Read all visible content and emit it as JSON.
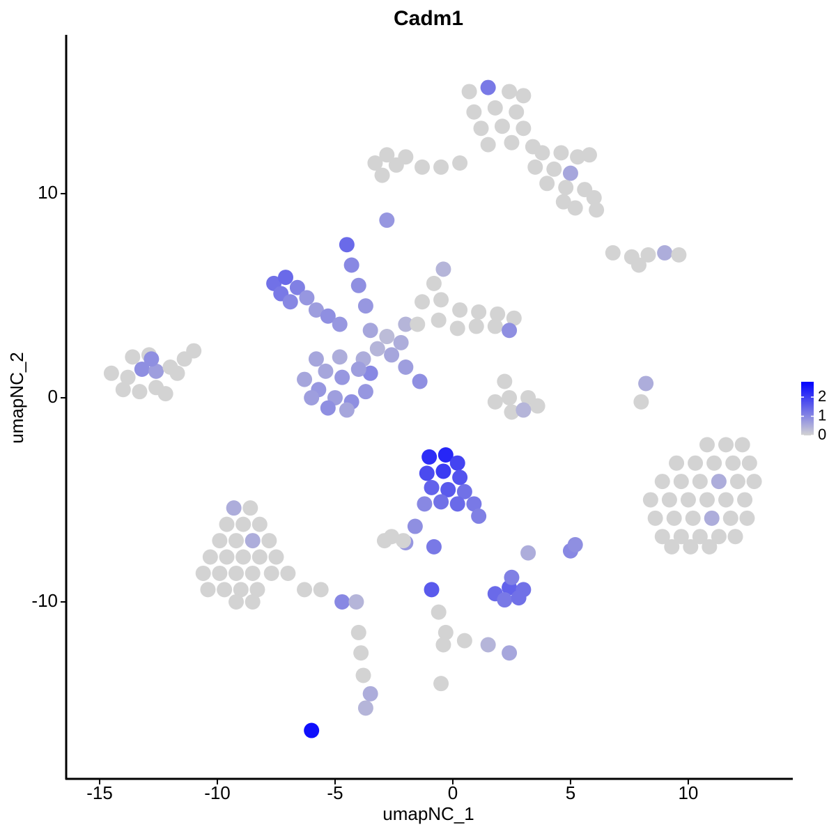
{
  "chart_data": {
    "type": "scatter",
    "title": "Cadm1",
    "xlabel": "umapNC_1",
    "ylabel": "umapNC_2",
    "xlim": [
      -16.42,
      14.44
    ],
    "ylim": [
      -18.67,
      17.78
    ],
    "xticks": [
      -15,
      -10,
      -5,
      0,
      5,
      10
    ],
    "yticks": [
      -10,
      0,
      10
    ],
    "colorbar": {
      "colors": [
        "#d3d3d3",
        "#0000ff"
      ],
      "lim": [
        0,
        2.8
      ],
      "ticks": [
        0,
        1,
        2
      ]
    },
    "x": [
      0.7,
      1.5,
      2.4,
      3.0,
      0.9,
      1.8,
      2.7,
      1.2,
      2.1,
      3.0,
      1.5,
      2.5,
      3.4,
      3.8,
      4.6,
      5.3,
      5.8,
      3.5,
      4.3,
      5.0,
      4.0,
      4.8,
      5.6,
      6.0,
      4.7,
      5.2,
      6.1,
      0.3,
      -0.5,
      -1.3,
      -2.0,
      -2.8,
      -3.3,
      -2.4,
      -3.0,
      -2.8,
      6.8,
      7.6,
      8.3,
      9.0,
      9.6,
      7.9,
      -14.5,
      -13.8,
      -13.2,
      -12.6,
      -12.0,
      -11.4,
      -11.0,
      -14.0,
      -13.3,
      -12.6,
      -12.2,
      -13.6,
      -12.9,
      -11.7,
      -12.8,
      -7.6,
      -7.1,
      -7.3,
      -6.6,
      -6.9,
      -6.2,
      -5.8,
      -5.3,
      -4.8,
      -4.5,
      -4.3,
      -4.0,
      -3.7,
      -3.5,
      -2.8,
      -2.2,
      -3.2,
      -2.0,
      -3.8,
      -6.3,
      -5.7,
      -5.0,
      -4.3,
      -3.7,
      -3.5,
      -5.4,
      -4.7,
      -4.0,
      -6.0,
      -5.3,
      -4.5,
      -4.8,
      -5.8,
      -2.6,
      -2.0,
      -1.4,
      -0.8,
      -1.3,
      -0.5,
      0.3,
      1.1,
      1.9,
      2.6,
      -0.6,
      0.2,
      -1.5,
      1.0,
      1.8,
      2.4,
      -0.4,
      1.8,
      2.4,
      3.2,
      3.6,
      2.5,
      2.2,
      3.0,
      8.0,
      8.2,
      10.8,
      11.6,
      12.3,
      9.5,
      10.3,
      11.1,
      11.9,
      12.6,
      8.9,
      9.7,
      10.5,
      11.3,
      12.1,
      12.8,
      8.4,
      9.2,
      10.0,
      10.8,
      11.6,
      12.4,
      8.6,
      9.4,
      10.2,
      11.0,
      11.8,
      12.5,
      8.9,
      9.7,
      10.5,
      11.3,
      12.0,
      9.3,
      10.1,
      10.9,
      -1.0,
      -0.3,
      0.2,
      -1.1,
      -0.4,
      0.3,
      -0.9,
      -0.2,
      0.5,
      0.9,
      0.2,
      -0.5,
      1.1,
      -1.2,
      -1.6,
      -2.0,
      -2.6,
      -2.1,
      -2.9,
      -0.8,
      -9.3,
      -8.6,
      -9.6,
      -8.9,
      -8.2,
      -9.9,
      -9.2,
      -8.5,
      -7.8,
      -10.3,
      -9.6,
      -8.9,
      -8.2,
      -7.5,
      -10.6,
      -9.9,
      -9.2,
      -8.5,
      -7.7,
      -7.0,
      -10.4,
      -9.7,
      -9.0,
      -8.3,
      -6.3,
      -5.6,
      -9.2,
      -8.5,
      -4.7,
      -4.1,
      -4.0,
      -3.9,
      -3.8,
      -3.5,
      -3.7,
      -6.0,
      1.8,
      2.4,
      3.0,
      2.2,
      2.8,
      2.5,
      3.2,
      -0.9,
      -0.6,
      -0.3,
      -0.4,
      0.5,
      1.5,
      2.4,
      5.0,
      5.2,
      -0.5
    ],
    "y": [
      15,
      15.2,
      15,
      14.8,
      14,
      14.2,
      14,
      13.2,
      13.3,
      13.2,
      12.4,
      12.5,
      12.3,
      12,
      12,
      11.8,
      11.9,
      11.3,
      11.2,
      11.0,
      10.5,
      10.3,
      10.2,
      9.8,
      9.6,
      9.3,
      9.2,
      11.5,
      11.3,
      11.3,
      11.8,
      11.9,
      11.5,
      11.4,
      10.9,
      8.7,
      7.1,
      6.9,
      7.0,
      7.1,
      7.0,
      6.5,
      1.2,
      1.0,
      1.4,
      1.3,
      1.5,
      1.9,
      2.3,
      0.4,
      0.3,
      0.5,
      0.2,
      2.0,
      2.1,
      1.2,
      1.9,
      5.6,
      5.9,
      5.1,
      5.4,
      4.7,
      4.9,
      4.3,
      4.0,
      3.6,
      7.5,
      6.5,
      5.5,
      4.5,
      3.3,
      3.0,
      2.7,
      2.4,
      3.6,
      1.9,
      0.9,
      0.4,
      0.0,
      -0.2,
      0.3,
      1.2,
      1.3,
      1.0,
      1.4,
      0.0,
      -0.5,
      -0.6,
      2.0,
      1.9,
      2.1,
      1.5,
      0.8,
      5.6,
      4.7,
      4.8,
      4.3,
      4.2,
      4.1,
      3.9,
      3.8,
      3.4,
      3.6,
      3.5,
      3.5,
      3.3,
      6.3,
      -0.2,
      0,
      0,
      -0.4,
      -0.7,
      0.8,
      -0.6,
      -0.2,
      0.7,
      -2.3,
      -2.3,
      -2.3,
      -3.2,
      -3.2,
      -3.2,
      -3.2,
      -3.2,
      -4.1,
      -4.1,
      -4.1,
      -4.1,
      -4.1,
      -4.1,
      -5.0,
      -5.0,
      -5.0,
      -5.0,
      -5.0,
      -5.0,
      -5.9,
      -5.9,
      -5.9,
      -5.9,
      -5.9,
      -5.9,
      -6.8,
      -6.8,
      -6.8,
      -6.8,
      -6.8,
      -7.3,
      -7.3,
      -7.3,
      -2.9,
      -2.8,
      -3.2,
      -3.7,
      -3.6,
      -3.9,
      -4.4,
      -4.5,
      -4.6,
      -5.2,
      -5.2,
      -5.1,
      -5.8,
      -5.2,
      -6.3,
      -7.1,
      -6.8,
      -7.0,
      -7.0,
      -7.3,
      -5.4,
      -5.4,
      -6.2,
      -6.2,
      -6.2,
      -7.0,
      -7.0,
      -7.0,
      -7.0,
      -7.8,
      -7.8,
      -7.8,
      -7.8,
      -7.8,
      -8.6,
      -8.6,
      -8.6,
      -8.6,
      -8.6,
      -8.6,
      -9.4,
      -9.4,
      -9.4,
      -9.4,
      -9.4,
      -9.4,
      -10.0,
      -10.0,
      -10.0,
      -10.0,
      -11.5,
      -12.5,
      -13.6,
      -14.5,
      -15.2,
      -16.3,
      -9.6,
      -9.3,
      -9.4,
      -9.9,
      -9.8,
      -8.8,
      -7.6,
      -9.4,
      -10.5,
      -11.5,
      -12.1,
      -11.9,
      -12.1,
      -12.5,
      -7.5,
      -7.2,
      -14.0
    ],
    "values": [
      0,
      1.2,
      0,
      0,
      0,
      0,
      0,
      0,
      0,
      0,
      0,
      0,
      0,
      0,
      0,
      0,
      0,
      0,
      0,
      0.6,
      0,
      0,
      0,
      0,
      0,
      0,
      0,
      0,
      0,
      0,
      0,
      0,
      0,
      0,
      0,
      0.8,
      0,
      0,
      0,
      0.5,
      0,
      0,
      0,
      0,
      0.9,
      0.7,
      0,
      0,
      0,
      0,
      0,
      0,
      0,
      0,
      0,
      0,
      0.9,
      1.3,
      1.4,
      1.2,
      1.1,
      1.0,
      0.8,
      0.7,
      0.9,
      0.8,
      1.4,
      1.0,
      0.9,
      0.8,
      0.6,
      0.3,
      0.5,
      0.4,
      0.4,
      0.5,
      0.6,
      0.8,
      0.7,
      0.9,
      0.8,
      1.0,
      0.6,
      0.8,
      0.7,
      0.7,
      0.9,
      0.6,
      0.5,
      0.6,
      0.6,
      0.7,
      0.9,
      0,
      0,
      0,
      0,
      0,
      0,
      0,
      0,
      0,
      0,
      0,
      0,
      0.9,
      0.4,
      0,
      0,
      0,
      0,
      0,
      0,
      0.4,
      0,
      0.5,
      0,
      0,
      0,
      0,
      0,
      0,
      0,
      0,
      0,
      0,
      0,
      0.5,
      0,
      0,
      0,
      0,
      0,
      0,
      0,
      0,
      0,
      0,
      0,
      0.5,
      0,
      0,
      0,
      0,
      0,
      0,
      0,
      0,
      0,
      0,
      2.2,
      2.3,
      1.9,
      1.8,
      2.0,
      1.7,
      1.5,
      1.6,
      1.3,
      1.2,
      1.4,
      1.3,
      1.1,
      1.0,
      0.9,
      0.8,
      0,
      0,
      0,
      1.2,
      0.5,
      0,
      0,
      0,
      0,
      0,
      0,
      0.5,
      0,
      0,
      0,
      0,
      0,
      0,
      0,
      0,
      0,
      0,
      0,
      0,
      0,
      0,
      0,
      0,
      0,
      0,
      0,
      0,
      1.0,
      0.4,
      0,
      0,
      0,
      0.5,
      0.4,
      2.6,
      1.4,
      1.5,
      1.3,
      1.2,
      1.3,
      1.1,
      0.5,
      1.6,
      0,
      0,
      0,
      0,
      0.4,
      0.6,
      1.0,
      0.9,
      0
    ]
  }
}
